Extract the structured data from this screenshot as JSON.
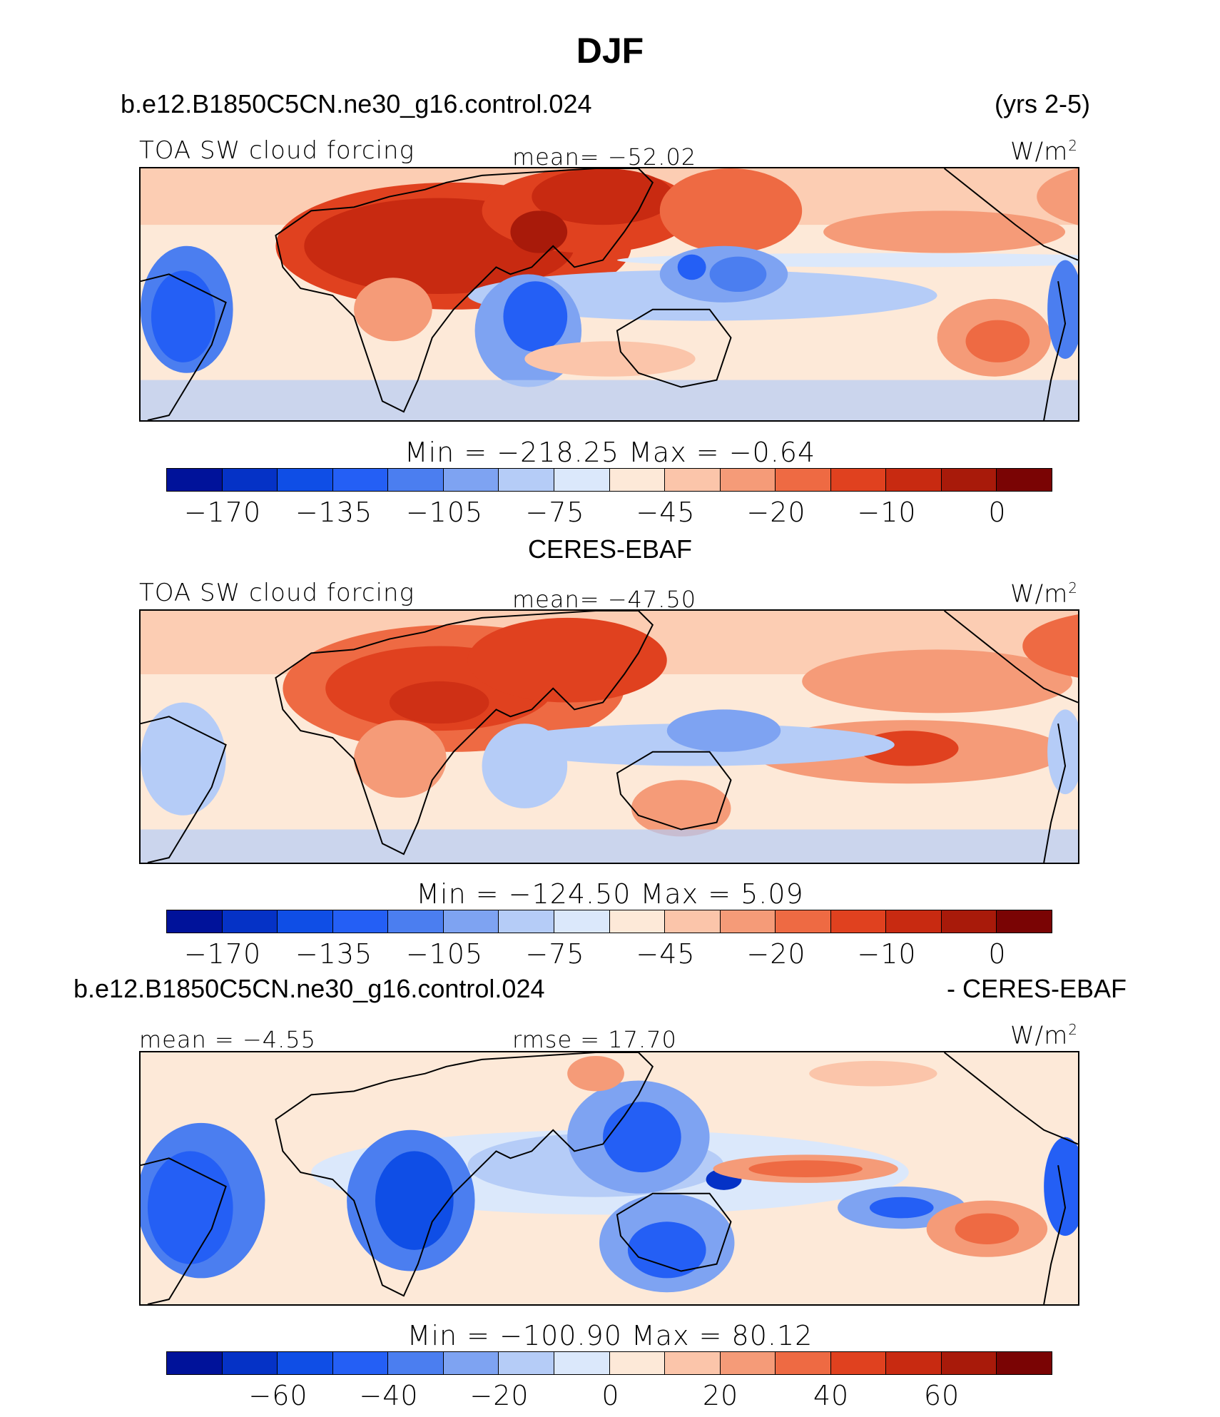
{
  "title": "DJF",
  "case_name": "b.e12.B1850C5CN.ne30_g16.control.024",
  "years": "(yrs 2-5)",
  "obs_name": "CERES-EBAF",
  "diff_case": "b.e12.B1850C5CN.ne30_g16.control.024",
  "diff_suffix": "- CERES-EBAF",
  "panels": [
    {
      "left_label": "TOA SW cloud forcing",
      "center_label": "mean= −52.02",
      "units_base": "W/m",
      "units_exp": "2",
      "minmax": "Min  =  −218.25  Max  =   −0.64",
      "ticks": [
        "−170",
        "−135",
        "−105",
        "−75",
        "−45",
        "−20",
        "−10",
        "0"
      ]
    },
    {
      "left_label": "TOA SW cloud forcing",
      "center_label": "mean= −47.50",
      "units_base": "W/m",
      "units_exp": "2",
      "minmax": "Min  =  −124.50  Max  =     5.09",
      "ticks": [
        "−170",
        "−135",
        "−105",
        "−75",
        "−45",
        "−20",
        "−10",
        "0"
      ]
    },
    {
      "left_label": "mean =   −4.55",
      "center_label": "rmse =   17.70",
      "units_base": "W/m",
      "units_exp": "2",
      "minmax": "Min  =  −100.90  Max  =   80.12",
      "ticks": [
        "−60",
        "−40",
        "−20",
        "0",
        "20",
        "40",
        "60"
      ]
    }
  ],
  "colors": {
    "palette": [
      "#00129a",
      "#0532c6",
      "#0f4ee6",
      "#245ff5",
      "#4b7ef0",
      "#7ea3f2",
      "#b5ccf7",
      "#dbe8fb",
      "#fde9d8",
      "#fbc5aa",
      "#f59b78",
      "#ee6a43",
      "#e0411f",
      "#c82a11",
      "#a81a0a",
      "#7a0404"
    ],
    "continent_outline": "#000000"
  }
}
